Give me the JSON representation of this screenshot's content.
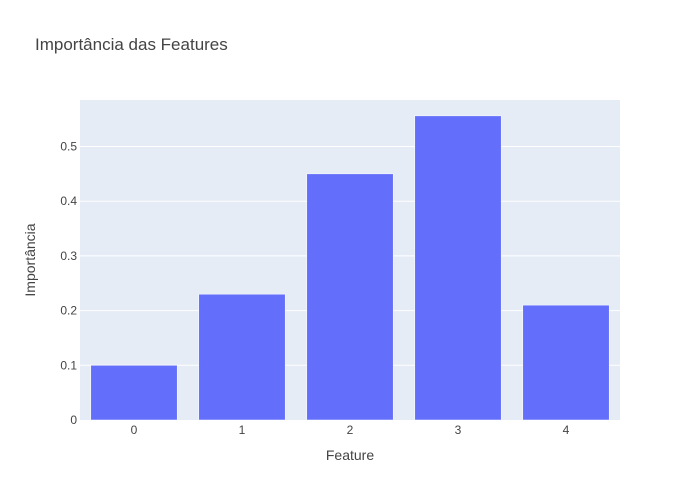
{
  "chart_data": {
    "type": "bar",
    "title": "Importância das Features",
    "xlabel": "Feature",
    "ylabel": "Importância",
    "categories": [
      "0",
      "1",
      "2",
      "3",
      "4"
    ],
    "values": [
      0.1,
      0.23,
      0.45,
      0.556,
      0.21
    ],
    "ylim": [
      0,
      0.585
    ],
    "yticks": [
      0,
      0.1,
      0.2,
      0.3,
      0.4,
      0.5
    ],
    "ytick_labels": [
      "0",
      "0.1",
      "0.2",
      "0.3",
      "0.4",
      "0.5"
    ],
    "grid": true,
    "colors": {
      "bar": "#636efa",
      "plot_background": "#e5ecf6",
      "grid": "#ffffff",
      "text": "#444444"
    }
  }
}
